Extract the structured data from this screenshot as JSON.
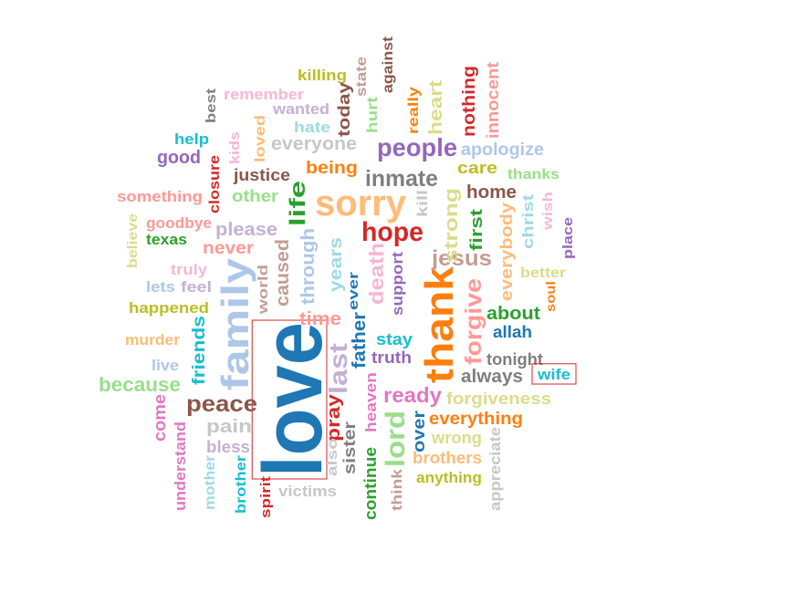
{
  "word_cloud": {
    "highlighted": [
      "love",
      "wife"
    ],
    "words": [
      {
        "text": "love",
        "color": "#1f77b4"
      },
      {
        "text": "family",
        "color": "#aec7e8"
      },
      {
        "text": "sorry",
        "color": "#ffbb78"
      },
      {
        "text": "thank",
        "color": "#ff7f0e"
      },
      {
        "text": "hope",
        "color": "#d62728"
      },
      {
        "text": "people",
        "color": "#9467bd"
      },
      {
        "text": "inmate",
        "color": "#7f7f7f"
      },
      {
        "text": "peace",
        "color": "#8c564b"
      },
      {
        "text": "jesus",
        "color": "#c49c94"
      },
      {
        "text": "forgive",
        "color": "#ff9896"
      },
      {
        "text": "lord",
        "color": "#98df8a"
      },
      {
        "text": "last",
        "color": "#c5b0d5"
      },
      {
        "text": "ready",
        "color": "#e377c2"
      },
      {
        "text": "life",
        "color": "#2ca02c"
      },
      {
        "text": "strong",
        "color": "#dbdb8d"
      },
      {
        "text": "home",
        "color": "#8c564b"
      },
      {
        "text": "death",
        "color": "#f7b6d2"
      },
      {
        "text": "being",
        "color": "#ff7f0e"
      },
      {
        "text": "heart",
        "color": "#dbdb8d"
      },
      {
        "text": "everybody",
        "color": "#ffbb78"
      },
      {
        "text": "years",
        "color": "#9edae5"
      },
      {
        "text": "friends",
        "color": "#17becf"
      },
      {
        "text": "father",
        "color": "#1f77b4"
      },
      {
        "text": "pray",
        "color": "#d62728"
      },
      {
        "text": "time",
        "color": "#ff9896"
      },
      {
        "text": "because",
        "color": "#98df8a"
      },
      {
        "text": "caused",
        "color": "#c49c94"
      },
      {
        "text": "through",
        "color": "#aec7e8"
      },
      {
        "text": "everyone",
        "color": "#c7c7c7"
      },
      {
        "text": "nothing",
        "color": "#d62728"
      },
      {
        "text": "innocent",
        "color": "#ff9896"
      },
      {
        "text": "apologize",
        "color": "#aec7e8"
      },
      {
        "text": "support",
        "color": "#9467bd"
      },
      {
        "text": "about",
        "color": "#2ca02c"
      },
      {
        "text": "allah",
        "color": "#1f77b4"
      },
      {
        "text": "always",
        "color": "#7f7f7f"
      },
      {
        "text": "tonight",
        "color": "#7f7f7f"
      },
      {
        "text": "forgiveness",
        "color": "#dbdb8d"
      },
      {
        "text": "everything",
        "color": "#ff7f0e"
      },
      {
        "text": "wrong",
        "color": "#dbdb8d"
      },
      {
        "text": "brothers",
        "color": "#ffbb78"
      },
      {
        "text": "anything",
        "color": "#bcbd22"
      },
      {
        "text": "appreciate",
        "color": "#c7c7c7"
      },
      {
        "text": "continue",
        "color": "#2ca02c"
      },
      {
        "text": "heaven",
        "color": "#e377c2"
      },
      {
        "text": "over",
        "color": "#1f77b4"
      },
      {
        "text": "sister",
        "color": "#7f7f7f"
      },
      {
        "text": "also",
        "color": "#c7c7c7"
      },
      {
        "text": "think",
        "color": "#c49c94"
      },
      {
        "text": "victims",
        "color": "#c7c7c7"
      },
      {
        "text": "spirit",
        "color": "#d62728"
      },
      {
        "text": "brother",
        "color": "#17becf"
      },
      {
        "text": "mother",
        "color": "#9edae5"
      },
      {
        "text": "bless",
        "color": "#c5b0d5"
      },
      {
        "text": "pain",
        "color": "#c7c7c7"
      },
      {
        "text": "understand",
        "color": "#e377c2"
      },
      {
        "text": "come",
        "color": "#e377c2"
      },
      {
        "text": "live",
        "color": "#aec7e8"
      },
      {
        "text": "murder",
        "color": "#ffbb78"
      },
      {
        "text": "happened",
        "color": "#bcbd22"
      },
      {
        "text": "lets",
        "color": "#aec7e8"
      },
      {
        "text": "feel",
        "color": "#c5b0d5"
      },
      {
        "text": "truly",
        "color": "#f7b6d2"
      },
      {
        "text": "world",
        "color": "#c49c94"
      },
      {
        "text": "never",
        "color": "#ff9896"
      },
      {
        "text": "please",
        "color": "#c5b0d5"
      },
      {
        "text": "texas",
        "color": "#2ca02c"
      },
      {
        "text": "goodbye",
        "color": "#ff9896"
      },
      {
        "text": "believe",
        "color": "#dbdb8d"
      },
      {
        "text": "something",
        "color": "#ff9896"
      },
      {
        "text": "closure",
        "color": "#d62728"
      },
      {
        "text": "other",
        "color": "#98df8a"
      },
      {
        "text": "justice",
        "color": "#8c564b"
      },
      {
        "text": "good",
        "color": "#9467bd"
      },
      {
        "text": "help",
        "color": "#17becf"
      },
      {
        "text": "kids",
        "color": "#f7b6d2"
      },
      {
        "text": "loved",
        "color": "#ffbb78"
      },
      {
        "text": "best",
        "color": "#7f7f7f"
      },
      {
        "text": "remember",
        "color": "#f7b6d2"
      },
      {
        "text": "wanted",
        "color": "#c5b0d5"
      },
      {
        "text": "hate",
        "color": "#9edae5"
      },
      {
        "text": "killing",
        "color": "#bcbd22"
      },
      {
        "text": "today",
        "color": "#8c564b"
      },
      {
        "text": "hurt",
        "color": "#98df8a"
      },
      {
        "text": "state",
        "color": "#c49c94"
      },
      {
        "text": "against",
        "color": "#8c564b"
      },
      {
        "text": "really",
        "color": "#ff7f0e"
      },
      {
        "text": "kill",
        "color": "#c7c7c7"
      },
      {
        "text": "care",
        "color": "#bcbd22"
      },
      {
        "text": "thanks",
        "color": "#98df8a"
      },
      {
        "text": "first",
        "color": "#2ca02c"
      },
      {
        "text": "christ",
        "color": "#9edae5"
      },
      {
        "text": "wish",
        "color": "#f7b6d2"
      },
      {
        "text": "place",
        "color": "#9467bd"
      },
      {
        "text": "better",
        "color": "#dbdb8d"
      },
      {
        "text": "soul",
        "color": "#ff7f0e"
      },
      {
        "text": "ever",
        "color": "#1f77b4"
      },
      {
        "text": "stay",
        "color": "#17becf"
      },
      {
        "text": "truth",
        "color": "#9467bd"
      },
      {
        "text": "wife",
        "color": "#17becf"
      }
    ]
  }
}
